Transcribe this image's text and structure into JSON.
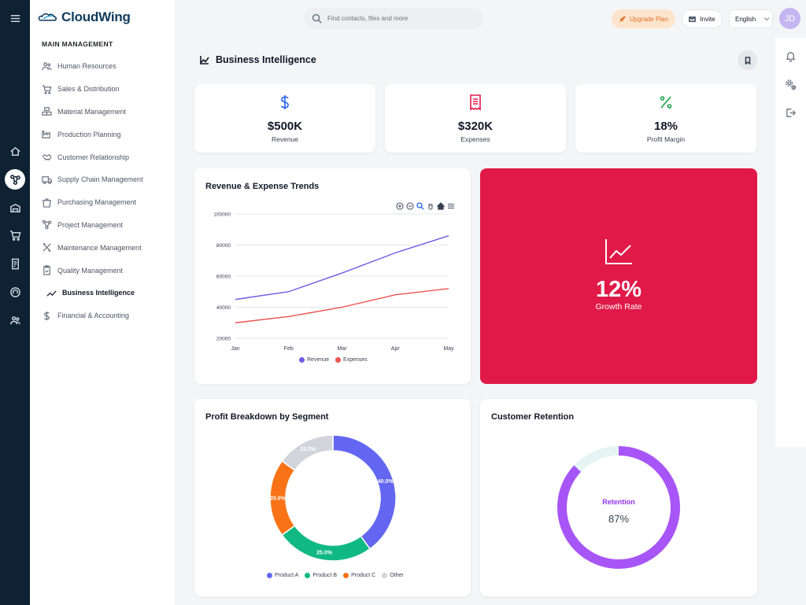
{
  "brand": {
    "name": "CloudWing"
  },
  "rail": {
    "icons": [
      "menu-icon",
      "home-icon",
      "network-icon",
      "warehouse-icon",
      "cart-icon",
      "invoice-icon",
      "support-icon",
      "team-icon"
    ]
  },
  "sidebar": {
    "section_title": "MAIN MANAGEMENT",
    "items": [
      {
        "label": "Human Resources",
        "icon": "people-icon"
      },
      {
        "label": "Sales & Distribution",
        "icon": "cart-icon"
      },
      {
        "label": "Material Management",
        "icon": "boxes-icon"
      },
      {
        "label": "Production Planning",
        "icon": "factory-icon"
      },
      {
        "label": "Customer Relationship",
        "icon": "handshake-icon"
      },
      {
        "label": "Supply Chain Management",
        "icon": "truck-icon"
      },
      {
        "label": "Purchasing Management",
        "icon": "bag-icon"
      },
      {
        "label": "Project Management",
        "icon": "network-icon"
      },
      {
        "label": "Maintenance Management",
        "icon": "tools-icon"
      },
      {
        "label": "Quality Management",
        "icon": "clipboard-check-icon"
      },
      {
        "label": "Business Intelligence",
        "icon": "trend-icon",
        "active": true
      },
      {
        "label": "Financial & Accounting",
        "icon": "dollar-icon"
      }
    ]
  },
  "header": {
    "search_placeholder": "Find contacts, files and more",
    "upgrade_label": "Upgrade Plan",
    "invite_label": "Invite",
    "language": "English",
    "avatar_initials": "JD"
  },
  "page": {
    "title": "Business Intelligence"
  },
  "kpis": [
    {
      "value": "$500K",
      "label": "Revenue",
      "icon": "dollar-icon",
      "color": "#2563eb"
    },
    {
      "value": "$320K",
      "label": "Expenses",
      "icon": "receipt-icon",
      "color": "#e01948"
    },
    {
      "value": "18%",
      "label": "Profit Margin",
      "icon": "percent-icon",
      "color": "#16a34a"
    }
  ],
  "growth": {
    "value": "12%",
    "label": "Growth Rate",
    "color": "#e01948"
  },
  "trend_chart": {
    "title": "Revenue & Expense Trends",
    "chart_data": {
      "type": "line",
      "categories": [
        "Jan",
        "Feb",
        "Mar",
        "Apr",
        "May"
      ],
      "series": [
        {
          "name": "Revenue",
          "values": [
            45000,
            50000,
            62000,
            75000,
            86000
          ],
          "color": "#6d5de6"
        },
        {
          "name": "Expenses",
          "values": [
            30000,
            34000,
            40000,
            48000,
            52000
          ],
          "color": "#ef5350"
        }
      ],
      "ylim": [
        20000,
        100000
      ],
      "yticks": [
        "100000",
        "80000",
        "60000",
        "40000",
        "20000"
      ],
      "grid": true,
      "legend": "bottom"
    }
  },
  "segment_chart": {
    "title": "Profit Breakdown by Segment",
    "chart_data": {
      "type": "pie",
      "categories": [
        "Product A",
        "Product B",
        "Product C",
        "Other"
      ],
      "values": [
        40,
        25,
        20,
        15
      ],
      "labels": [
        "40.0%",
        "25.0%",
        "20.0%",
        "15.0%"
      ],
      "colors": [
        "#6366f1",
        "#10b981",
        "#f97316",
        "#d1d5db"
      ],
      "donut": true,
      "legend": "bottom"
    }
  },
  "retention_chart": {
    "title": "Customer Retention",
    "chart_data": {
      "type": "pie",
      "categories": [
        "Retention"
      ],
      "values": [
        87
      ],
      "center_label": "Retention",
      "center_value": "87%",
      "colors": [
        "#a855f7",
        "#e6f4f4"
      ],
      "donut": true
    }
  }
}
